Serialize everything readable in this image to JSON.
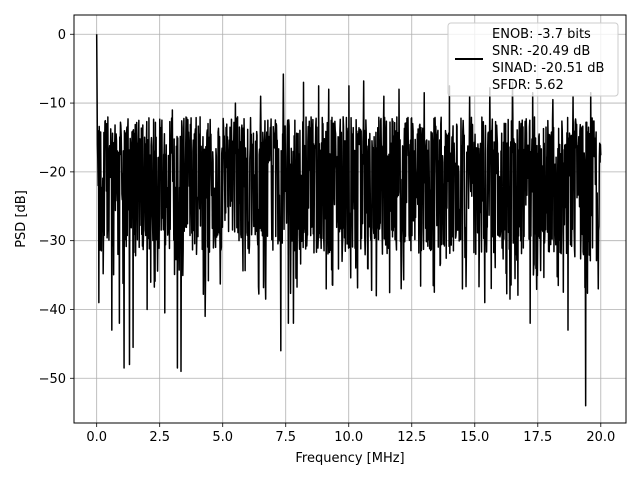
{
  "chart_data": {
    "type": "line",
    "title": "",
    "xlabel": "Frequency [MHz]",
    "ylabel": "PSD [dB]",
    "xlim": [
      -0.9,
      21.0
    ],
    "ylim": [
      -56.5,
      2.8
    ],
    "xticks": [
      0.0,
      2.5,
      5.0,
      7.5,
      10.0,
      12.5,
      15.0,
      17.5,
      20.0
    ],
    "xtick_labels": [
      "0.0",
      "2.5",
      "5.0",
      "7.5",
      "10.0",
      "12.5",
      "15.0",
      "17.5",
      "20.0"
    ],
    "yticks": [
      0,
      -10,
      -20,
      -30,
      -40,
      -50
    ],
    "ytick_labels": [
      "0",
      "−10",
      "−20",
      "−30",
      "−40",
      "−50"
    ],
    "grid": true,
    "legend_position": "top-right",
    "legend_lines": [
      "ENOB: -3.7 bits",
      "SNR: -20.49 dB",
      "SINAD: -20.51 dB",
      "SFDR: 5.62"
    ],
    "series": [
      {
        "color": "#000000",
        "x_start": 0.0,
        "x_end": 20.0,
        "points_count": 1400,
        "peak_values": [
          [
            0.0,
            0.0
          ],
          [
            0.02,
            -8.0
          ],
          [
            0.04,
            -18.0
          ],
          [
            0.06,
            -22.0
          ],
          [
            0.08,
            -15.0
          ]
        ],
        "typical_band_db": [
          -30,
          -12
        ],
        "dips": [
          [
            0.08,
            -39.0
          ],
          [
            0.6,
            -43.0
          ],
          [
            0.9,
            -42.0
          ],
          [
            1.08,
            -48.5
          ],
          [
            1.3,
            -48.0
          ],
          [
            1.45,
            -45.5
          ],
          [
            2.0,
            -40.0
          ],
          [
            2.7,
            -40.5
          ],
          [
            3.2,
            -48.5
          ],
          [
            3.35,
            -49.0
          ],
          [
            4.3,
            -41.0
          ],
          [
            6.7,
            -38.5
          ],
          [
            7.3,
            -46.0
          ],
          [
            7.6,
            -42.0
          ],
          [
            7.8,
            -42.0
          ],
          [
            9.1,
            -37.0
          ],
          [
            11.1,
            -38.0
          ],
          [
            13.4,
            -37.5
          ],
          [
            15.4,
            -39.0
          ],
          [
            16.4,
            -38.5
          ],
          [
            17.2,
            -42.0
          ],
          [
            18.7,
            -43.0
          ],
          [
            19.4,
            -54.0
          ],
          [
            19.9,
            -37.0
          ]
        ],
        "peaks": [
          [
            0.6,
            -12.0
          ],
          [
            1.2,
            -13.5
          ],
          [
            3.0,
            -11.0
          ],
          [
            4.1,
            -12.0
          ],
          [
            5.5,
            -10.0
          ],
          [
            6.5,
            -9.0
          ],
          [
            7.4,
            -5.8
          ],
          [
            8.2,
            -7.0
          ],
          [
            8.8,
            -7.5
          ],
          [
            9.2,
            -8.0
          ],
          [
            10.0,
            -7.5
          ],
          [
            10.6,
            -6.8
          ],
          [
            11.4,
            -9.0
          ],
          [
            12.0,
            -8.0
          ],
          [
            13.0,
            -8.5
          ],
          [
            14.0,
            -7.5
          ],
          [
            14.8,
            -9.0
          ],
          [
            15.6,
            -7.8
          ],
          [
            16.5,
            -7.0
          ],
          [
            17.3,
            -8.5
          ],
          [
            18.1,
            -9.5
          ],
          [
            18.9,
            -9.0
          ],
          [
            19.6,
            -8.5
          ]
        ]
      }
    ]
  }
}
